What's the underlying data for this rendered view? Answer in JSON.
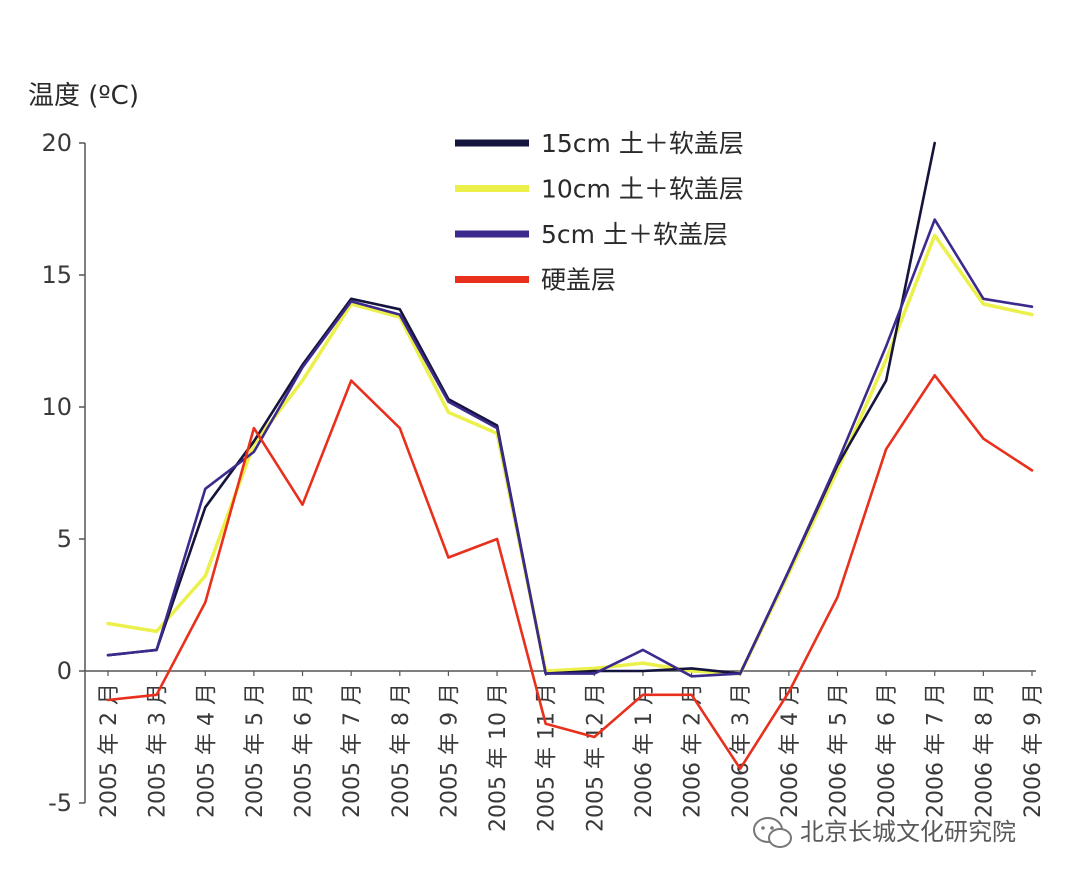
{
  "chart_data": {
    "type": "line",
    "ylabel": "温度 (ºC)",
    "xlabel": "",
    "ylim": [
      -5,
      20
    ],
    "yticks": [
      "20",
      "15",
      "10",
      "5",
      "0",
      "-5"
    ],
    "categories": [
      "2005 年 2 月",
      "2005 年 3 月",
      "2005 年 4 月",
      "2005 年 5 月",
      "2005 年 6 月",
      "2005 年 7 月",
      "2005 年 8 月",
      "2005 年 9 月",
      "2005 年 10 月",
      "2005 年 11 月",
      "2005 年 12 月",
      "2006 年 1 月",
      "2006 年 2 月",
      "2006 年 3 月",
      "2006 年 4 月",
      "2006 年 5 月",
      "2006 年 6 月",
      "2006 年 7 月",
      "2006 年 8 月",
      "2006 年 9 月"
    ],
    "series": [
      {
        "name": "15cm 土＋软盖层",
        "color": "#14143c",
        "values": [
          0.6,
          0.8,
          6.2,
          8.7,
          11.6,
          14.1,
          13.7,
          10.3,
          9.3,
          -0.1,
          0.0,
          0.0,
          0.1,
          -0.1,
          3.8,
          7.8,
          11.0,
          20.0,
          null,
          null
        ]
      },
      {
        "name": "10cm 土＋软盖层",
        "color": "#ecf04a",
        "values": [
          1.8,
          1.5,
          3.6,
          8.6,
          11.0,
          13.9,
          13.4,
          9.8,
          9.0,
          0.0,
          0.1,
          0.3,
          0.0,
          -0.1,
          3.7,
          7.6,
          11.8,
          16.5,
          13.9,
          13.5
        ]
      },
      {
        "name": "5cm 土＋软盖层",
        "color": "#3c2a8c",
        "values": [
          0.6,
          0.8,
          6.9,
          8.3,
          11.5,
          14.0,
          13.5,
          10.2,
          9.2,
          -0.1,
          -0.1,
          0.8,
          -0.2,
          -0.1,
          3.8,
          7.9,
          12.3,
          17.1,
          14.1,
          13.8
        ]
      },
      {
        "name": "硬盖层",
        "color": "#e8301c",
        "values": [
          -1.1,
          -0.9,
          2.6,
          9.2,
          6.3,
          11.0,
          9.2,
          4.3,
          5.0,
          -2.0,
          -2.5,
          -0.9,
          -0.9,
          -3.7,
          -0.8,
          2.8,
          8.4,
          11.2,
          8.8,
          7.6
        ]
      }
    ],
    "legend": {
      "position": "top-center"
    },
    "grid": false
  },
  "watermark": {
    "icon": "wechat-icon",
    "text": "北京长城文化研究院"
  }
}
